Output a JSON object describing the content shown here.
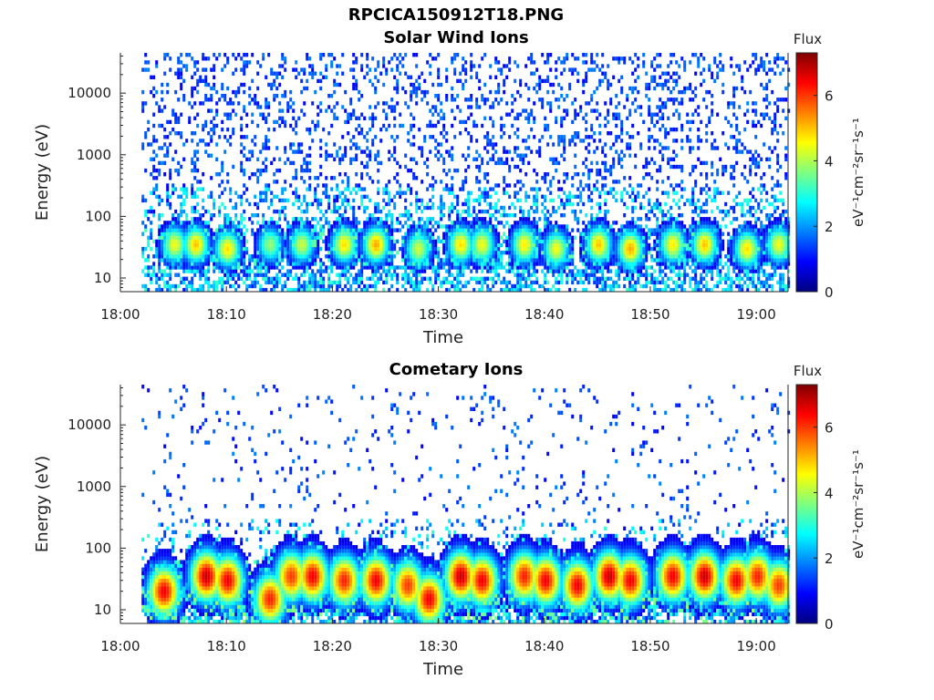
{
  "figure_title": "RPCICA150912T18.PNG",
  "colormap": [
    "#00007f",
    "#0000ff",
    "#007fff",
    "#00ffff",
    "#7fff7f",
    "#ffff00",
    "#ff7f00",
    "#ff0000",
    "#7f0000"
  ],
  "chart_data": [
    {
      "type": "heatmap",
      "title": "Solar Wind Ions",
      "xlabel": "Time",
      "ylabel": "Energy (eV)",
      "x_ticks": [
        "18:00",
        "18:10",
        "18:20",
        "18:30",
        "18:40",
        "18:50",
        "19:00"
      ],
      "x_range": [
        "18:00",
        "19:03"
      ],
      "data_start": "18:02",
      "y_scale": "log",
      "y_ticks": [
        10,
        100,
        1000,
        10000
      ],
      "y_tick_labels": [
        "10",
        "100",
        "1000",
        "10000"
      ],
      "y_range": [
        6,
        45000
      ],
      "colorbar": {
        "title": "Flux",
        "label": "eV⁻¹cm⁻²sr⁻¹s⁻¹",
        "range": [
          0,
          7.3
        ],
        "ticks": [
          0,
          2,
          4,
          6
        ],
        "tick_labels": [
          "0",
          "2",
          "4",
          "6"
        ]
      },
      "grid": false,
      "background_noise": "sparse low-flux (1-2) speckle across 100-40000 eV for the whole interval",
      "bursts": [
        {
          "time": "18:05",
          "peak_ev": 35,
          "peak_flux": 4.5
        },
        {
          "time": "18:07",
          "peak_ev": 35,
          "peak_flux": 5.0
        },
        {
          "time": "18:10",
          "peak_ev": 30,
          "peak_flux": 4.8
        },
        {
          "time": "18:14",
          "peak_ev": 35,
          "peak_flux": 3.8
        },
        {
          "time": "18:17",
          "peak_ev": 35,
          "peak_flux": 4.2
        },
        {
          "time": "18:21",
          "peak_ev": 35,
          "peak_flux": 4.8
        },
        {
          "time": "18:24",
          "peak_ev": 35,
          "peak_flux": 5.2
        },
        {
          "time": "18:28",
          "peak_ev": 30,
          "peak_flux": 4.2
        },
        {
          "time": "18:32",
          "peak_ev": 35,
          "peak_flux": 4.8
        },
        {
          "time": "18:34",
          "peak_ev": 35,
          "peak_flux": 4.5
        },
        {
          "time": "18:38",
          "peak_ev": 35,
          "peak_flux": 4.7
        },
        {
          "time": "18:41",
          "peak_ev": 30,
          "peak_flux": 4.5
        },
        {
          "time": "18:45",
          "peak_ev": 35,
          "peak_flux": 5.0
        },
        {
          "time": "18:48",
          "peak_ev": 30,
          "peak_flux": 5.2
        },
        {
          "time": "18:52",
          "peak_ev": 35,
          "peak_flux": 4.7
        },
        {
          "time": "18:55",
          "peak_ev": 35,
          "peak_flux": 5.0
        },
        {
          "time": "18:59",
          "peak_ev": 30,
          "peak_flux": 4.8
        },
        {
          "time": "19:02",
          "peak_ev": 35,
          "peak_flux": 4.5
        }
      ]
    },
    {
      "type": "heatmap",
      "title": "Cometary Ions",
      "xlabel": "Time",
      "ylabel": "Energy (eV)",
      "x_ticks": [
        "18:00",
        "18:10",
        "18:20",
        "18:30",
        "18:40",
        "18:50",
        "19:00"
      ],
      "x_range": [
        "18:00",
        "19:03"
      ],
      "data_start": "18:02",
      "y_scale": "log",
      "y_ticks": [
        10,
        100,
        1000,
        10000
      ],
      "y_tick_labels": [
        "10",
        "100",
        "1000",
        "10000"
      ],
      "y_range": [
        6,
        45000
      ],
      "colorbar": {
        "title": "Flux",
        "label": "eV⁻¹cm⁻²sr⁻¹s⁻¹",
        "range": [
          0,
          7.3
        ],
        "ticks": [
          0,
          2,
          4,
          6
        ],
        "tick_labels": [
          "0",
          "2",
          "4",
          "6"
        ]
      },
      "grid": false,
      "background_noise": "very sparse low-flux (1) speckle across 100-10000 eV",
      "bursts": [
        {
          "time": "18:04",
          "peak_ev": 20,
          "peak_flux": 6.5
        },
        {
          "time": "18:08",
          "peak_ev": 35,
          "peak_flux": 6.8
        },
        {
          "time": "18:10",
          "peak_ev": 30,
          "peak_flux": 6.5
        },
        {
          "time": "18:14",
          "peak_ev": 15,
          "peak_flux": 6.2
        },
        {
          "time": "18:16",
          "peak_ev": 35,
          "peak_flux": 6.0
        },
        {
          "time": "18:18",
          "peak_ev": 35,
          "peak_flux": 6.5
        },
        {
          "time": "18:21",
          "peak_ev": 30,
          "peak_flux": 6.2
        },
        {
          "time": "18:24",
          "peak_ev": 30,
          "peak_flux": 6.5
        },
        {
          "time": "18:27",
          "peak_ev": 25,
          "peak_flux": 6.0
        },
        {
          "time": "18:29",
          "peak_ev": 15,
          "peak_flux": 6.5
        },
        {
          "time": "18:32",
          "peak_ev": 35,
          "peak_flux": 6.8
        },
        {
          "time": "18:34",
          "peak_ev": 30,
          "peak_flux": 6.5
        },
        {
          "time": "18:38",
          "peak_ev": 35,
          "peak_flux": 6.2
        },
        {
          "time": "18:40",
          "peak_ev": 30,
          "peak_flux": 6.5
        },
        {
          "time": "18:43",
          "peak_ev": 25,
          "peak_flux": 6.5
        },
        {
          "time": "18:46",
          "peak_ev": 35,
          "peak_flux": 6.8
        },
        {
          "time": "18:48",
          "peak_ev": 30,
          "peak_flux": 6.5
        },
        {
          "time": "18:52",
          "peak_ev": 35,
          "peak_flux": 6.5
        },
        {
          "time": "18:55",
          "peak_ev": 35,
          "peak_flux": 6.8
        },
        {
          "time": "18:58",
          "peak_ev": 30,
          "peak_flux": 6.5
        },
        {
          "time": "19:00",
          "peak_ev": 35,
          "peak_flux": 6.2
        },
        {
          "time": "19:02",
          "peak_ev": 25,
          "peak_flux": 6.0
        }
      ]
    }
  ]
}
